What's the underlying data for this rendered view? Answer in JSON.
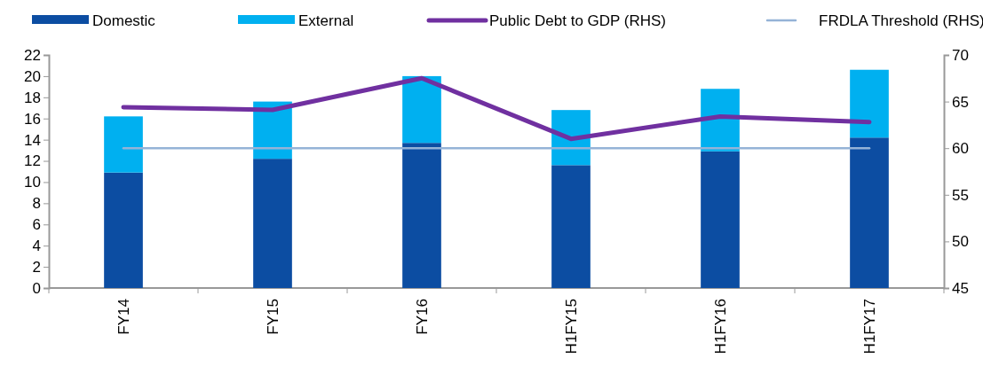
{
  "chart_data": {
    "type": "bar",
    "stacked": true,
    "categories": [
      "FY14",
      "FY15",
      "FY16",
      "H1FY15",
      "H1FY16",
      "H1FY17"
    ],
    "series": [
      {
        "name": "Domestic",
        "color": "#0c4da2",
        "values": [
          10.9,
          12.2,
          13.7,
          11.6,
          12.9,
          14.2
        ]
      },
      {
        "name": "External",
        "color": "#00b0f0",
        "values": [
          5.3,
          5.4,
          6.3,
          5.2,
          5.9,
          6.4
        ]
      },
      {
        "name": "Public Debt to GDP (RHS)",
        "type": "line",
        "axis": "y2",
        "color": "#7030a0",
        "values": [
          64.4,
          64.1,
          67.5,
          61.0,
          63.4,
          62.8
        ]
      },
      {
        "name": "FRDLA Threshold (RHS)",
        "type": "line",
        "axis": "y2",
        "color": "#95b3d7",
        "values": [
          60,
          60,
          60,
          60,
          60,
          60
        ]
      }
    ],
    "ylim": [
      0,
      22
    ],
    "yticks": [
      0,
      2,
      4,
      6,
      8,
      10,
      12,
      14,
      16,
      18,
      20,
      22
    ],
    "y2lim": [
      45,
      70
    ],
    "y2ticks": [
      45,
      50,
      55,
      60,
      65,
      70
    ],
    "grid": false,
    "legend": "top"
  }
}
